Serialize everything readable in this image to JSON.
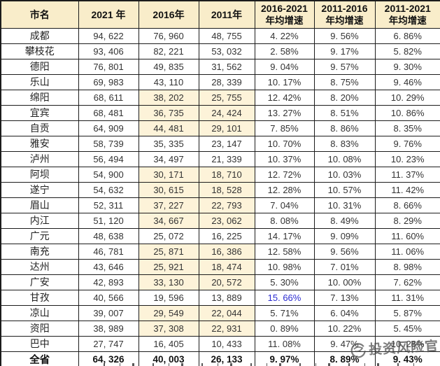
{
  "table": {
    "columns": [
      {
        "line1": "市名",
        "line2": ""
      },
      {
        "line1": "2021 年",
        "line2": ""
      },
      {
        "line1": "2016年",
        "line2": ""
      },
      {
        "line1": "2011年",
        "line2": ""
      },
      {
        "line1": "2016-2021",
        "line2": "年均增速"
      },
      {
        "line1": "2011-2016",
        "line2": "年均增速"
      },
      {
        "line1": "2011-2021",
        "line2": "年均增速"
      }
    ],
    "rows": [
      {
        "cells": [
          "成都",
          "94, 622",
          "76, 960",
          "48, 755",
          "4. 22%",
          "9. 56%",
          "6. 86%"
        ],
        "hl": false,
        "bold": false
      },
      {
        "cells": [
          "攀枝花",
          "93, 406",
          "82, 221",
          "53, 032",
          "2. 58%",
          "9. 17%",
          "5. 82%"
        ],
        "hl": false,
        "bold": false
      },
      {
        "cells": [
          "德阳",
          "76, 801",
          "49, 835",
          "31, 562",
          "9. 04%",
          "9. 57%",
          "9. 30%"
        ],
        "hl": false,
        "bold": false
      },
      {
        "cells": [
          "乐山",
          "69, 983",
          "43, 110",
          "28, 339",
          "10. 17%",
          "8. 75%",
          "9. 46%"
        ],
        "hl": false,
        "bold": false
      },
      {
        "cells": [
          "绵阳",
          "68, 611",
          "38, 202",
          "25, 755",
          "12. 42%",
          "8. 20%",
          "10. 29%"
        ],
        "hl": true,
        "bold": false
      },
      {
        "cells": [
          "宜宾",
          "68, 481",
          "36, 735",
          "24, 424",
          "13. 27%",
          "8. 51%",
          "10. 86%"
        ],
        "hl": true,
        "bold": false
      },
      {
        "cells": [
          "自贡",
          "64, 909",
          "44, 481",
          "29, 101",
          "7. 85%",
          "8. 86%",
          "8. 35%"
        ],
        "hl": true,
        "bold": false
      },
      {
        "cells": [
          "雅安",
          "58, 739",
          "35, 335",
          "23, 147",
          "10. 70%",
          "8. 83%",
          "9. 76%"
        ],
        "hl": false,
        "bold": false
      },
      {
        "cells": [
          "泸州",
          "56, 494",
          "34, 497",
          "21, 339",
          "10. 37%",
          "10. 08%",
          "10. 23%"
        ],
        "hl": false,
        "bold": false
      },
      {
        "cells": [
          "阿坝",
          "54, 900",
          "30, 171",
          "18, 710",
          "12. 72%",
          "10. 03%",
          "11. 37%"
        ],
        "hl": true,
        "bold": false
      },
      {
        "cells": [
          "遂宁",
          "54, 632",
          "30, 615",
          "18, 528",
          "12. 28%",
          "10. 57%",
          "11. 42%"
        ],
        "hl": true,
        "bold": false
      },
      {
        "cells": [
          "眉山",
          "52, 311",
          "37, 227",
          "22, 793",
          "7. 04%",
          "10. 31%",
          "8. 66%"
        ],
        "hl": true,
        "bold": false
      },
      {
        "cells": [
          "内江",
          "51, 120",
          "34, 667",
          "23, 062",
          "8. 08%",
          "8. 49%",
          "8. 29%"
        ],
        "hl": true,
        "bold": false
      },
      {
        "cells": [
          "广元",
          "48, 638",
          "25, 072",
          "16, 225",
          "14. 17%",
          "9. 09%",
          "11. 60%"
        ],
        "hl": false,
        "bold": false
      },
      {
        "cells": [
          "南充",
          "46, 781",
          "25, 871",
          "16, 386",
          "12. 58%",
          "9. 56%",
          "11. 06%"
        ],
        "hl": true,
        "bold": false
      },
      {
        "cells": [
          "达州",
          "43, 646",
          "25, 921",
          "18, 474",
          "10. 98%",
          "7. 01%",
          "8. 98%"
        ],
        "hl": true,
        "bold": false
      },
      {
        "cells": [
          "广安",
          "42, 893",
          "33, 130",
          "20, 572",
          "5. 30%",
          "10. 00%",
          "7. 62%"
        ],
        "hl": true,
        "bold": false
      },
      {
        "cells": [
          "甘孜",
          "40, 566",
          "19, 596",
          "13, 889",
          "15. 66%",
          "7. 13%",
          "11. 31%"
        ],
        "hl": false,
        "bold": false,
        "blue": 4
      },
      {
        "cells": [
          "凉山",
          "39, 007",
          "29, 549",
          "22, 044",
          "5. 71%",
          "6. 04%",
          "5. 87%"
        ],
        "hl": true,
        "bold": false
      },
      {
        "cells": [
          "资阳",
          "38, 989",
          "37, 308",
          "22, 931",
          "0. 89%",
          "10. 22%",
          "5. 45%"
        ],
        "hl": true,
        "bold": false
      },
      {
        "cells": [
          "巴中",
          "27, 747",
          "16, 405",
          "10, 433",
          "11. 08%",
          "9. 47%",
          "10. 28%"
        ],
        "hl": false,
        "bold": false
      },
      {
        "cells": [
          "全省",
          "64, 326",
          "40, 003",
          "26, 133",
          "9. 97%",
          "8. 89%",
          "9. 43%"
        ],
        "hl": false,
        "bold": true
      }
    ]
  },
  "chart_data": {
    "type": "table",
    "title": "",
    "columns": [
      "市名",
      "2021年",
      "2016年",
      "2011年",
      "2016-2021年均增速",
      "2011-2016年均增速",
      "2011-2021年均增速"
    ],
    "rows": [
      [
        "成都",
        94622,
        76960,
        48755,
        "4.22%",
        "9.56%",
        "6.86%"
      ],
      [
        "攀枝花",
        93406,
        82221,
        53032,
        "2.58%",
        "9.17%",
        "5.82%"
      ],
      [
        "德阳",
        76801,
        49835,
        31562,
        "9.04%",
        "9.57%",
        "9.30%"
      ],
      [
        "乐山",
        69983,
        43110,
        28339,
        "10.17%",
        "8.75%",
        "9.46%"
      ],
      [
        "绵阳",
        68611,
        38202,
        25755,
        "12.42%",
        "8.20%",
        "10.29%"
      ],
      [
        "宜宾",
        68481,
        36735,
        24424,
        "13.27%",
        "8.51%",
        "10.86%"
      ],
      [
        "自贡",
        64909,
        44481,
        29101,
        "7.85%",
        "8.86%",
        "8.35%"
      ],
      [
        "雅安",
        58739,
        35335,
        23147,
        "10.70%",
        "8.83%",
        "9.76%"
      ],
      [
        "泸州",
        56494,
        34497,
        21339,
        "10.37%",
        "10.08%",
        "10.23%"
      ],
      [
        "阿坝",
        54900,
        30171,
        18710,
        "12.72%",
        "10.03%",
        "11.37%"
      ],
      [
        "遂宁",
        54632,
        30615,
        18528,
        "12.28%",
        "10.57%",
        "11.42%"
      ],
      [
        "眉山",
        52311,
        37227,
        22793,
        "7.04%",
        "10.31%",
        "8.66%"
      ],
      [
        "内江",
        51120,
        34667,
        23062,
        "8.08%",
        "8.49%",
        "8.29%"
      ],
      [
        "广元",
        48638,
        25072,
        16225,
        "14.17%",
        "9.09%",
        "11.60%"
      ],
      [
        "南充",
        46781,
        25871,
        16386,
        "12.58%",
        "9.56%",
        "11.06%"
      ],
      [
        "达州",
        43646,
        25921,
        18474,
        "10.98%",
        "7.01%",
        "8.98%"
      ],
      [
        "广安",
        42893,
        33130,
        20572,
        "5.30%",
        "10.00%",
        "7.62%"
      ],
      [
        "甘孜",
        40566,
        19596,
        13889,
        "15.66%",
        "7.13%",
        "11.31%"
      ],
      [
        "凉山",
        39007,
        29549,
        22044,
        "5.71%",
        "6.04%",
        "5.87%"
      ],
      [
        "资阳",
        38989,
        37308,
        22931,
        "0.89%",
        "10.22%",
        "5.45%"
      ],
      [
        "巴中",
        27747,
        16405,
        10433,
        "11.08%",
        "9.47%",
        "10.28%"
      ],
      [
        "全省",
        64326,
        40003,
        26133,
        "9.97%",
        "8.89%",
        "9.43%"
      ]
    ],
    "notes": "2016年/2011年 cells with cream highlight: 绵阳,宜宾,自贡,阿坝,遂宁,眉山,内江,南充,达州,广安,凉山,资阳; 甘孜 15.66% shown in blue; 全省 row bold"
  },
  "watermark": {
    "text": "投资风险官"
  },
  "colors": {
    "header_bg": "#f9edca",
    "highlight_bg": "#fdf3d9",
    "border": "#1c1c1c",
    "text": "#333333",
    "blue_text": "#2b2bd0",
    "watermark": "#4b4b4b"
  }
}
